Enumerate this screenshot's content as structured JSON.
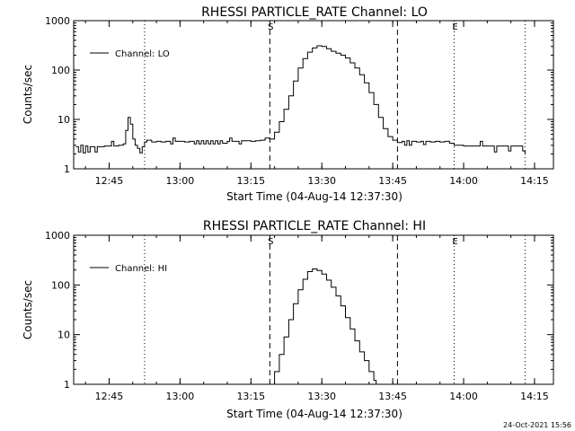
{
  "footer_timestamp": "24-Oct-2021 15:56",
  "chart_data": [
    {
      "type": "line",
      "title": "RHESSI PARTICLE_RATE Channel: LO",
      "xlabel": "Start Time (04-Aug-14 12:37:30)",
      "ylabel": "Counts/sec",
      "y_scale": "log",
      "ylim": [
        1,
        1000
      ],
      "y_ticks": [
        "1",
        "10",
        "100",
        "1000"
      ],
      "x_ticks": [
        "12:45",
        "13:00",
        "13:15",
        "13:30",
        "13:45",
        "14:00",
        "14:15"
      ],
      "xlim": [
        "12:37:30",
        "14:19:00"
      ],
      "legend": {
        "label": "Channel: LO",
        "placement": "top-left"
      },
      "markers": [
        {
          "label": "",
          "time": "12:52:30",
          "style": "dotted"
        },
        {
          "label": "S",
          "time": "13:19:00",
          "style": "dashed"
        },
        {
          "label": "",
          "time": "13:46:00",
          "style": "dashed"
        },
        {
          "label": "E",
          "time": "13:58:00",
          "style": "dotted"
        },
        {
          "label": "",
          "time": "14:13:00",
          "style": "dotted"
        }
      ],
      "series": [
        {
          "name": "Channel: LO",
          "points": [
            [
              "12:38:00",
              2.8
            ],
            [
              "12:38:30",
              2.2
            ],
            [
              "12:39:00",
              3.0
            ],
            [
              "12:39:30",
              2.1
            ],
            [
              "12:40:00",
              2.9
            ],
            [
              "12:40:30",
              2.2
            ],
            [
              "12:41:00",
              2.8
            ],
            [
              "12:41:30",
              2.8
            ],
            [
              "12:42:00",
              2.2
            ],
            [
              "12:42:30",
              2.8
            ],
            [
              "12:43:00",
              2.8
            ],
            [
              "12:44:00",
              2.9
            ],
            [
              "12:45:00",
              2.9
            ],
            [
              "12:45:30",
              3.6
            ],
            [
              "12:46:00",
              2.9
            ],
            [
              "12:47:00",
              3.0
            ],
            [
              "12:48:00",
              3.2
            ],
            [
              "12:48:30",
              6.0
            ],
            [
              "12:49:00",
              11.0
            ],
            [
              "12:49:30",
              8.0
            ],
            [
              "12:50:00",
              4.0
            ],
            [
              "12:50:30",
              3.0
            ],
            [
              "12:51:00",
              2.6
            ],
            [
              "12:51:30",
              2.1
            ],
            [
              "12:52:00",
              2.8
            ],
            [
              "12:52:30",
              3.5
            ],
            [
              "12:53:00",
              3.8
            ],
            [
              "12:54:00",
              3.5
            ],
            [
              "12:55:00",
              3.6
            ],
            [
              "12:56:00",
              3.5
            ],
            [
              "12:57:00",
              3.6
            ],
            [
              "12:58:00",
              3.2
            ],
            [
              "12:58:30",
              4.2
            ],
            [
              "12:59:00",
              3.6
            ],
            [
              "13:00:00",
              3.6
            ],
            [
              "13:01:00",
              3.5
            ],
            [
              "13:02:00",
              3.6
            ],
            [
              "13:03:00",
              3.2
            ],
            [
              "13:03:30",
              3.7
            ],
            [
              "13:04:00",
              3.2
            ],
            [
              "13:04:30",
              3.7
            ],
            [
              "13:05:00",
              3.2
            ],
            [
              "13:05:30",
              3.7
            ],
            [
              "13:06:00",
              3.2
            ],
            [
              "13:06:30",
              3.7
            ],
            [
              "13:07:00",
              3.2
            ],
            [
              "13:07:30",
              3.7
            ],
            [
              "13:08:00",
              3.2
            ],
            [
              "13:08:30",
              3.7
            ],
            [
              "13:09:00",
              3.3
            ],
            [
              "13:10:00",
              3.6
            ],
            [
              "13:10:30",
              4.2
            ],
            [
              "13:11:00",
              3.6
            ],
            [
              "13:12:00",
              3.6
            ],
            [
              "13:12:30",
              3.2
            ],
            [
              "13:13:00",
              3.7
            ],
            [
              "13:14:00",
              3.7
            ],
            [
              "13:15:00",
              3.6
            ],
            [
              "13:16:00",
              3.7
            ],
            [
              "13:17:00",
              3.8
            ],
            [
              "13:18:00",
              4.2
            ],
            [
              "13:19:00",
              4.0
            ],
            [
              "13:20:00",
              5.5
            ],
            [
              "13:21:00",
              9.0
            ],
            [
              "13:22:00",
              16.0
            ],
            [
              "13:23:00",
              30.0
            ],
            [
              "13:24:00",
              60.0
            ],
            [
              "13:25:00",
              110.0
            ],
            [
              "13:26:00",
              170.0
            ],
            [
              "13:27:00",
              230.0
            ],
            [
              "13:28:00",
              280.0
            ],
            [
              "13:29:00",
              310.0
            ],
            [
              "13:30:00",
              300.0
            ],
            [
              "13:31:00",
              270.0
            ],
            [
              "13:32:00",
              240.0
            ],
            [
              "13:33:00",
              220.0
            ],
            [
              "13:34:00",
              200.0
            ],
            [
              "13:35:00",
              175.0
            ],
            [
              "13:36:00",
              140.0
            ],
            [
              "13:37:00",
              110.0
            ],
            [
              "13:38:00",
              80.0
            ],
            [
              "13:39:00",
              55.0
            ],
            [
              "13:40:00",
              35.0
            ],
            [
              "13:41:00",
              20.0
            ],
            [
              "13:42:00",
              11.0
            ],
            [
              "13:43:00",
              6.5
            ],
            [
              "13:44:00",
              4.5
            ],
            [
              "13:45:00",
              3.8
            ],
            [
              "13:46:00",
              3.4
            ],
            [
              "13:47:00",
              3.6
            ],
            [
              "13:47:30",
              3.0
            ],
            [
              "13:48:00",
              3.7
            ],
            [
              "13:48:30",
              3.0
            ],
            [
              "13:49:00",
              3.6
            ],
            [
              "13:50:00",
              3.5
            ],
            [
              "13:51:00",
              3.6
            ],
            [
              "13:51:30",
              3.1
            ],
            [
              "13:52:00",
              3.6
            ],
            [
              "13:53:00",
              3.5
            ],
            [
              "13:54:00",
              3.6
            ],
            [
              "13:55:00",
              3.5
            ],
            [
              "13:56:00",
              3.6
            ],
            [
              "13:57:00",
              3.3
            ],
            [
              "13:58:00",
              3.0
            ],
            [
              "14:00:00",
              2.9
            ],
            [
              "14:02:00",
              2.9
            ],
            [
              "14:03:00",
              2.9
            ],
            [
              "14:03:30",
              3.6
            ],
            [
              "14:04:00",
              2.9
            ],
            [
              "14:05:00",
              2.9
            ],
            [
              "14:06:00",
              2.9
            ],
            [
              "14:06:30",
              2.2
            ],
            [
              "14:07:00",
              2.9
            ],
            [
              "14:08:00",
              2.9
            ],
            [
              "14:09:00",
              2.9
            ],
            [
              "14:09:30",
              2.3
            ],
            [
              "14:10:00",
              2.9
            ],
            [
              "14:11:00",
              2.9
            ],
            [
              "14:12:00",
              2.9
            ],
            [
              "14:12:30",
              2.3
            ],
            [
              "14:13:00",
              2.0
            ]
          ]
        }
      ]
    },
    {
      "type": "line",
      "title": "RHESSI PARTICLE_RATE Channel: HI",
      "xlabel": "Start Time (04-Aug-14 12:37:30)",
      "ylabel": "Counts/sec",
      "y_scale": "log",
      "ylim": [
        1,
        1000
      ],
      "y_ticks": [
        "1",
        "10",
        "100",
        "1000"
      ],
      "x_ticks": [
        "12:45",
        "13:00",
        "13:15",
        "13:30",
        "13:45",
        "14:00",
        "14:15"
      ],
      "xlim": [
        "12:37:30",
        "14:19:00"
      ],
      "legend": {
        "label": "Channel: HI",
        "placement": "top-left"
      },
      "markers": [
        {
          "label": "",
          "time": "12:52:30",
          "style": "dotted"
        },
        {
          "label": "S",
          "time": "13:19:00",
          "style": "dashed"
        },
        {
          "label": "",
          "time": "13:46:00",
          "style": "dashed"
        },
        {
          "label": "E",
          "time": "13:58:00",
          "style": "dotted"
        },
        {
          "label": "",
          "time": "14:13:00",
          "style": "dotted"
        }
      ],
      "series": [
        {
          "name": "Channel: HI",
          "points": [
            [
              "13:19:30",
              1.0
            ],
            [
              "13:20:00",
              1.8
            ],
            [
              "13:21:00",
              4.0
            ],
            [
              "13:22:00",
              9.0
            ],
            [
              "13:23:00",
              20.0
            ],
            [
              "13:24:00",
              42.0
            ],
            [
              "13:25:00",
              80.0
            ],
            [
              "13:26:00",
              130.0
            ],
            [
              "13:27:00",
              185.0
            ],
            [
              "13:28:00",
              210.0
            ],
            [
              "13:29:00",
              195.0
            ],
            [
              "13:30:00",
              165.0
            ],
            [
              "13:31:00",
              125.0
            ],
            [
              "13:32:00",
              90.0
            ],
            [
              "13:33:00",
              60.0
            ],
            [
              "13:34:00",
              38.0
            ],
            [
              "13:35:00",
              22.0
            ],
            [
              "13:36:00",
              13.0
            ],
            [
              "13:37:00",
              7.5
            ],
            [
              "13:38:00",
              4.5
            ],
            [
              "13:39:00",
              3.0
            ],
            [
              "13:40:00",
              1.8
            ],
            [
              "13:41:00",
              1.2
            ],
            [
              "13:41:30",
              1.0
            ]
          ]
        }
      ]
    }
  ]
}
